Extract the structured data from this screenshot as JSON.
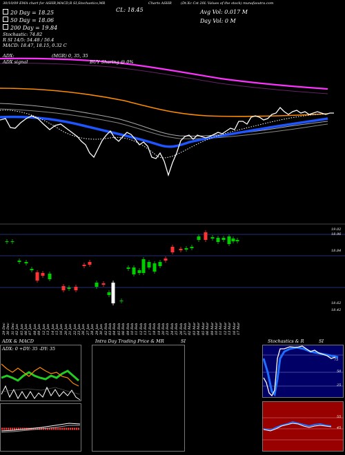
{
  "header": {
    "top_line": "30/10/09 EMA chart for ASHR,MACD,R SI,Stochastics,MR",
    "c_label": "CL: 18.45",
    "chart_title": "Charts ASHR",
    "right_top": "(Dt.Xc Cst 20L Values of the stock) munafasutra.com",
    "day_vol": "Day Vol: 0  M",
    "avg_vol": "Avg Vol: 0.017  M"
  },
  "legend": {
    "ema20": "20 Day = 18.25",
    "ema50": "50 Day = 18.06",
    "ema200": "200 Day = 19.84",
    "stoch": "Stochastic: 74.82",
    "rsi": "R  SI 14/5: 54.48 / 56.4",
    "macd": "MACD: 18.47, 18.15, 0.32  C",
    "adx": "ADX:",
    "mgr": "(MGR) 0,  35,  35",
    "adx_signal": "ADX  signal",
    "buy": "BUY Sharing @ 0%"
  },
  "colors": {
    "price": "#ffffff",
    "ema20": "#1f55ff",
    "ema50": "#ff8c00",
    "ema200": "#ff33ff",
    "up_candle": "#00cc00",
    "down_candle": "#ff3333",
    "rsi_bg": "#990000",
    "stoch_bg": "#000066"
  },
  "right_axis": {
    "ticks": [
      "19.02",
      "18.96",
      "18.84",
      "18.62",
      "18.42"
    ]
  },
  "x_axis": {
    "dates": [
      "29 Dec",
      "30 Dec",
      "31 Dec",
      "02 Jan",
      "05 Jan",
      "06 Jan",
      "07 Jan",
      "08 Jan",
      "09 Jan",
      "12 Jan",
      "13 Jan",
      "14 Jan",
      "15 Jan",
      "16 Jan",
      "20 Jan",
      "21 Jan",
      "22 Jan",
      "23 Jan",
      "26 Jan",
      "27 Jan",
      "28 Jan",
      "29 Jan",
      "30 Jan",
      "02 Feb",
      "03 Feb",
      "04 Feb",
      "05 Feb",
      "06 Feb",
      "09 Feb",
      "10 Feb",
      "11 Feb",
      "12 Feb",
      "13 Feb",
      "17 Feb",
      "18 Feb",
      "19 Feb",
      "20 Feb",
      "23 Feb",
      "24 Feb",
      "25 Feb",
      "26 Feb",
      "27 Feb",
      "02 Mar",
      "03 Mar",
      "04 Mar",
      "05 Mar",
      "06 Mar",
      "09 Mar",
      "10 Mar",
      "11 Mar",
      "12 Mar",
      "13 Mar",
      "16 Mar",
      "17 Mar"
    ]
  },
  "panels": {
    "adx_title": "ADX  & MACD",
    "intraday_title": "Intra Day Trading Price  & MR",
    "intraday_si": "SI",
    "stoch_title": "Stochastics & R",
    "stoch_si": "SI",
    "adx_readout": "ADX: 0  +DY: 35  -DY: 35"
  },
  "chart_data": [
    {
      "type": "line",
      "title": "Charts ASHR",
      "series": [
        {
          "name": "20 Day",
          "values": [
            18.25
          ]
        },
        {
          "name": "50 Day",
          "values": [
            18.06
          ]
        },
        {
          "name": "200 Day",
          "values": [
            19.84
          ]
        }
      ],
      "grid": false
    },
    {
      "type": "bar",
      "title": "",
      "y_ticks": [
        19.02,
        18.96,
        18.84,
        18.62,
        18.42
      ]
    }
  ]
}
